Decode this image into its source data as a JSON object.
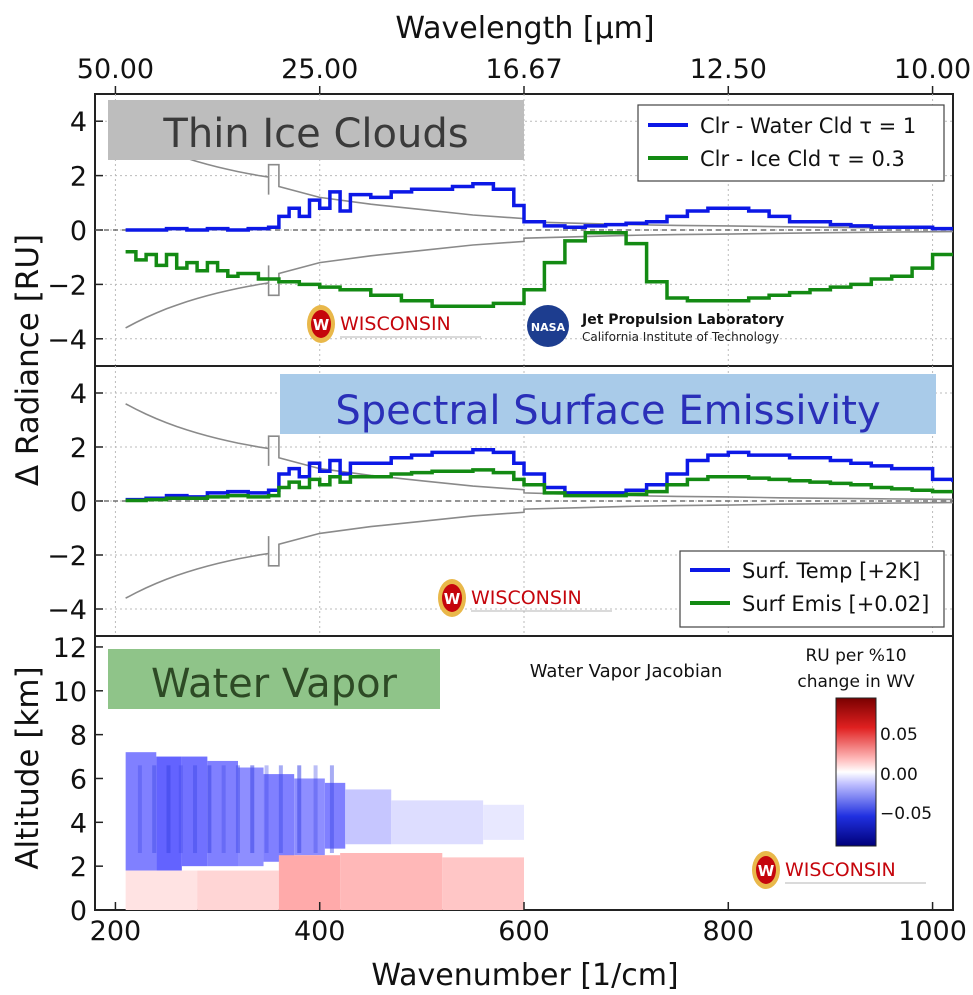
{
  "figure": {
    "top_axis_label": "Wavelength [μm]",
    "top_ticks": [
      "50.00",
      "25.00",
      "16.67",
      "12.50",
      "10.00"
    ],
    "top_tick_wavenumbers": [
      200,
      400,
      600,
      800,
      1000
    ],
    "x_label": "Wavenumber [1/cm]",
    "x_ticks": [
      "200",
      "400",
      "600",
      "800",
      "1000"
    ],
    "shared_ylabel_top": "Δ Radiance [RU]",
    "radiance_ticks": [
      "4",
      "2",
      "0",
      "−2",
      "−4"
    ],
    "altitude_ylabel": "Altitude [km]",
    "altitude_ticks": [
      "12",
      "10",
      "8",
      "6",
      "4",
      "2",
      "0"
    ]
  },
  "colors": {
    "blue": "#0c18e6",
    "green": "#138a13",
    "gray": "#8a8a8a",
    "title1_bg": "#bdbdbd",
    "title2_bg": "#a9cbe9",
    "title2_text": "#2a2fb8",
    "title3_bg": "#8fc489",
    "title3_text": "#2d4a25",
    "wisc_red": "#c5050c"
  },
  "panel1": {
    "title": "Thin Ice Clouds",
    "legend": [
      "Clr - Water Cld τ = 1",
      "Clr - Ice Cld τ = 0.3"
    ],
    "logo_wisconsin": "WISCONSIN",
    "logo_wisconsin_sub": "UNIVERSITY OF WISCONSIN–MADISON",
    "logo_nasa": "NASA",
    "logo_jpl_line1": "Jet Propulsion Laboratory",
    "logo_jpl_line2": "California Institute of Technology"
  },
  "panel2": {
    "title": "Spectral Surface Emissivity",
    "legend": [
      "Surf. Temp [+2K]",
      "Surf Emis [+0.02]"
    ],
    "logo_wisconsin": "WISCONSIN"
  },
  "panel3": {
    "title": "Water Vapor",
    "subtitle": "Water Vapor Jacobian",
    "colorbar_title": [
      "RU per %10",
      "change in WV"
    ],
    "colorbar_ticks": [
      "0.05",
      "0.00",
      "−0.05"
    ],
    "logo_wisconsin": "WISCONSIN"
  },
  "chart_data": [
    {
      "type": "line",
      "title": "Thin Ice Clouds",
      "xlabel": "Wavenumber [1/cm]",
      "ylabel": "Δ Radiance [RU]",
      "xlim": [
        180,
        1020
      ],
      "ylim": [
        -5,
        5
      ],
      "grid": true,
      "legend_position": "top-right",
      "series": [
        {
          "name": "Clr - Water Cld τ = 1",
          "color": "blue",
          "x": [
            210,
            230,
            250,
            270,
            290,
            310,
            330,
            350,
            360,
            370,
            380,
            390,
            400,
            410,
            420,
            430,
            450,
            470,
            490,
            510,
            530,
            550,
            570,
            590,
            600,
            620,
            640,
            660,
            680,
            700,
            720,
            740,
            760,
            780,
            800,
            820,
            840,
            860,
            880,
            900,
            920,
            940,
            960,
            980,
            1000,
            1020
          ],
          "y": [
            0.0,
            0.0,
            0.05,
            0.0,
            0.05,
            0.0,
            0.05,
            0.1,
            0.5,
            0.8,
            0.5,
            1.1,
            0.8,
            1.4,
            0.7,
            1.3,
            1.2,
            1.4,
            1.5,
            1.5,
            1.6,
            1.7,
            1.5,
            0.9,
            0.3,
            0.15,
            0.1,
            0.15,
            0.2,
            0.25,
            0.3,
            0.5,
            0.7,
            0.8,
            0.8,
            0.7,
            0.5,
            0.3,
            0.3,
            0.2,
            0.15,
            0.1,
            0.1,
            0.1,
            0.05,
            0.05
          ]
        },
        {
          "name": "Clr - Ice Cld τ = 0.3",
          "color": "green",
          "x": [
            210,
            220,
            230,
            240,
            250,
            260,
            270,
            280,
            290,
            300,
            310,
            320,
            340,
            360,
            380,
            400,
            420,
            450,
            480,
            510,
            540,
            570,
            600,
            620,
            640,
            660,
            680,
            700,
            720,
            740,
            760,
            780,
            800,
            820,
            840,
            860,
            880,
            900,
            920,
            940,
            960,
            980,
            1000,
            1020
          ],
          "y": [
            -0.8,
            -1.1,
            -0.9,
            -1.3,
            -0.9,
            -1.4,
            -1.2,
            -1.5,
            -1.2,
            -1.5,
            -1.7,
            -1.6,
            -1.8,
            -1.9,
            -2.0,
            -2.1,
            -2.2,
            -2.4,
            -2.6,
            -2.8,
            -2.8,
            -2.7,
            -2.2,
            -1.2,
            -0.4,
            -0.1,
            -0.1,
            -0.5,
            -1.9,
            -2.5,
            -2.6,
            -2.6,
            -2.6,
            -2.5,
            -2.4,
            -2.3,
            -2.2,
            -2.1,
            -2.0,
            -1.8,
            -1.7,
            -1.4,
            -0.9,
            -0.9
          ]
        }
      ]
    },
    {
      "type": "line",
      "title": "Spectral Surface Emissivity",
      "xlabel": "Wavenumber [1/cm]",
      "ylabel": "Δ Radiance [RU]",
      "xlim": [
        180,
        1020
      ],
      "ylim": [
        -5,
        5
      ],
      "grid": true,
      "legend_position": "bottom-right",
      "series": [
        {
          "name": "Surf. Temp [+2K]",
          "color": "blue",
          "x": [
            210,
            230,
            250,
            270,
            290,
            310,
            330,
            350,
            360,
            370,
            380,
            390,
            400,
            410,
            420,
            430,
            450,
            470,
            490,
            510,
            530,
            550,
            570,
            590,
            600,
            620,
            640,
            660,
            680,
            700,
            720,
            740,
            760,
            780,
            800,
            820,
            840,
            860,
            880,
            900,
            920,
            940,
            960,
            980,
            1000,
            1020
          ],
          "y": [
            0.05,
            0.1,
            0.2,
            0.15,
            0.3,
            0.35,
            0.3,
            0.4,
            1.0,
            1.2,
            0.9,
            1.4,
            1.1,
            1.5,
            1.0,
            1.4,
            1.4,
            1.6,
            1.7,
            1.8,
            1.8,
            1.9,
            1.8,
            1.4,
            1.0,
            0.5,
            0.3,
            0.3,
            0.3,
            0.4,
            0.6,
            1.0,
            1.5,
            1.7,
            1.8,
            1.7,
            1.7,
            1.6,
            1.6,
            1.5,
            1.4,
            1.3,
            1.2,
            1.2,
            0.8,
            0.7
          ]
        },
        {
          "name": "Surf Emis [+0.02]",
          "color": "green",
          "x": [
            210,
            230,
            250,
            270,
            290,
            310,
            330,
            350,
            360,
            370,
            380,
            390,
            400,
            410,
            420,
            430,
            450,
            470,
            490,
            510,
            530,
            550,
            570,
            590,
            600,
            620,
            640,
            660,
            680,
            700,
            720,
            740,
            760,
            780,
            800,
            820,
            840,
            860,
            880,
            900,
            920,
            940,
            960,
            980,
            1000,
            1020
          ],
          "y": [
            0.02,
            0.05,
            0.1,
            0.1,
            0.15,
            0.2,
            0.15,
            0.2,
            0.5,
            0.7,
            0.5,
            0.8,
            0.6,
            0.9,
            0.7,
            0.9,
            0.9,
            1.0,
            1.05,
            1.1,
            1.1,
            1.15,
            1.05,
            0.8,
            0.6,
            0.3,
            0.2,
            0.2,
            0.2,
            0.25,
            0.35,
            0.6,
            0.8,
            0.9,
            0.9,
            0.85,
            0.8,
            0.75,
            0.7,
            0.65,
            0.6,
            0.5,
            0.45,
            0.4,
            0.35,
            0.3
          ]
        }
      ]
    },
    {
      "type": "heatmap",
      "title": "Water Vapor Jacobian",
      "xlabel": "Wavenumber [1/cm]",
      "ylabel": "Altitude [km]",
      "xlim": [
        180,
        1020
      ],
      "ylim": [
        0,
        12.5
      ],
      "colorbar_label": "RU per %10 change in WV",
      "colorbar_range": [
        -0.09,
        0.09
      ],
      "cells": [
        {
          "x0": 210,
          "x1": 240,
          "y0": 1.8,
          "y1": 7.2,
          "v": -0.045
        },
        {
          "x0": 240,
          "x1": 265,
          "y0": 1.8,
          "y1": 7.0,
          "v": -0.055
        },
        {
          "x0": 265,
          "x1": 290,
          "y0": 2.0,
          "y1": 7.0,
          "v": -0.05
        },
        {
          "x0": 290,
          "x1": 320,
          "y0": 2.0,
          "y1": 6.8,
          "v": -0.045
        },
        {
          "x0": 320,
          "x1": 345,
          "y0": 2.0,
          "y1": 6.5,
          "v": -0.04
        },
        {
          "x0": 345,
          "x1": 375,
          "y0": 2.2,
          "y1": 6.2,
          "v": -0.045
        },
        {
          "x0": 375,
          "x1": 405,
          "y0": 2.5,
          "y1": 6.0,
          "v": -0.04
        },
        {
          "x0": 405,
          "x1": 425,
          "y0": 2.8,
          "y1": 5.8,
          "v": -0.045
        },
        {
          "x0": 425,
          "x1": 470,
          "y0": 3.0,
          "y1": 5.5,
          "v": -0.02
        },
        {
          "x0": 470,
          "x1": 560,
          "y0": 3.0,
          "y1": 5.0,
          "v": -0.012
        },
        {
          "x0": 560,
          "x1": 600,
          "y0": 3.2,
          "y1": 4.8,
          "v": -0.008
        },
        {
          "x0": 210,
          "x1": 280,
          "y0": 0.0,
          "y1": 1.8,
          "v": 0.01
        },
        {
          "x0": 280,
          "x1": 360,
          "y0": 0.0,
          "y1": 1.8,
          "v": 0.015
        },
        {
          "x0": 360,
          "x1": 420,
          "y0": 0.0,
          "y1": 2.5,
          "v": 0.03
        },
        {
          "x0": 420,
          "x1": 520,
          "y0": 0.0,
          "y1": 2.6,
          "v": 0.025
        },
        {
          "x0": 520,
          "x1": 600,
          "y0": 0.0,
          "y1": 2.4,
          "v": 0.02
        }
      ]
    }
  ]
}
